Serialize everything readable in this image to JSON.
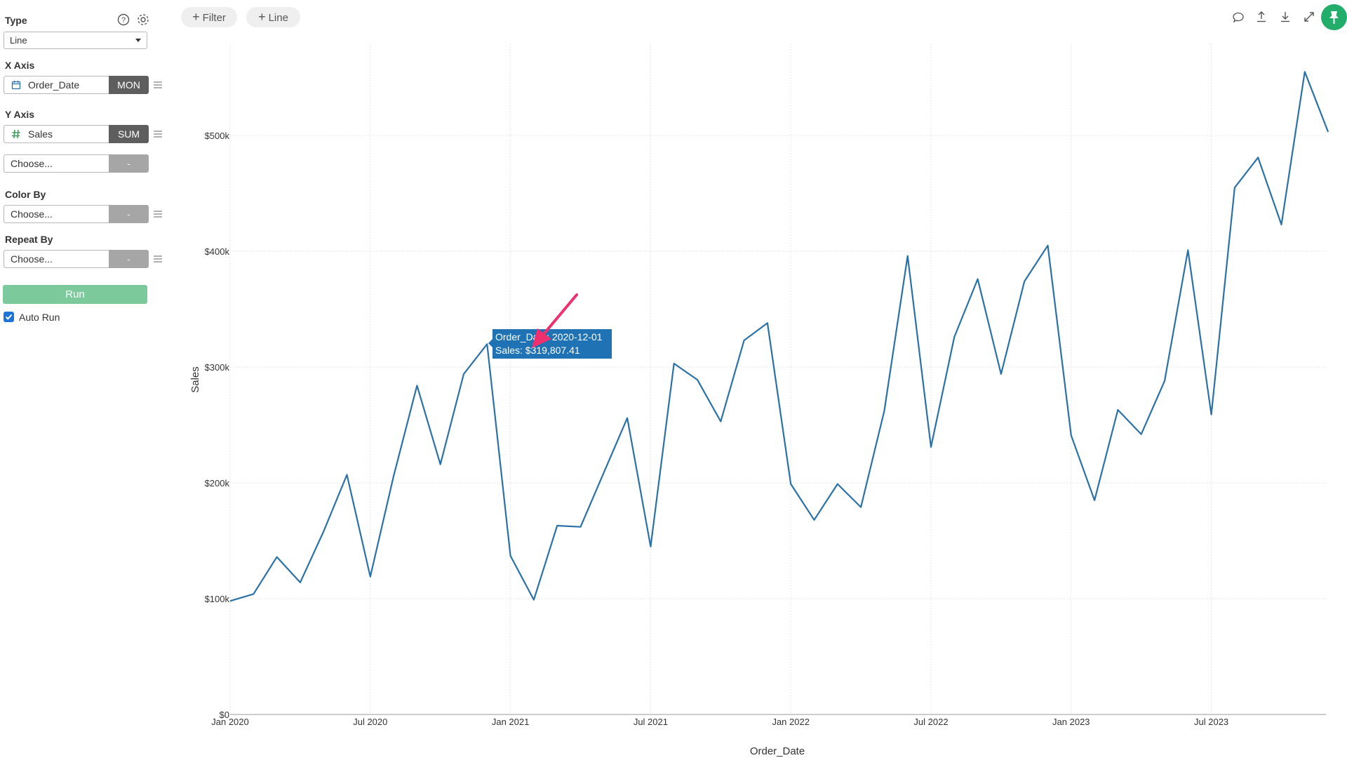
{
  "sidebar": {
    "type_label": "Type",
    "type_value": "Line",
    "x_axis_label": "X Axis",
    "x_field": "Order_Date",
    "x_agg": "MON",
    "y_axis_label": "Y Axis",
    "y_field": "Sales",
    "y_agg": "SUM",
    "y2_placeholder": "Choose...",
    "y2_agg": "-",
    "color_by_label": "Color By",
    "color_by_placeholder": "Choose...",
    "color_by_agg": "-",
    "repeat_by_label": "Repeat By",
    "repeat_by_placeholder": "Choose...",
    "repeat_by_agg": "-",
    "run_label": "Run",
    "auto_run_label": "Auto Run",
    "auto_run_checked": true,
    "icons": [
      "help-icon",
      "settings-gear-icon",
      "calendar-icon",
      "hash-icon",
      "drag-menu-icon"
    ]
  },
  "toolbar": {
    "filter_label": "Filter",
    "line_label": "Line",
    "icons": [
      "comment-icon",
      "upload-icon",
      "download-icon",
      "expand-icon",
      "pin-icon"
    ],
    "pin_color": "#22ad6a"
  },
  "tooltip": {
    "line1": "Order_Date: 2020-12-01",
    "line2": "Sales: $319,807.41"
  },
  "chart_data": {
    "type": "line",
    "xlabel": "Order_Date",
    "ylabel": "Sales",
    "x_ticks": [
      "Jan 2020",
      "Jul 2020",
      "Jan 2021",
      "Jul 2021",
      "Jan 2022",
      "Jul 2022",
      "Jan 2023",
      "Jul 2023"
    ],
    "y_ticks": [
      "$0",
      "$100k",
      "$200k",
      "$300k",
      "$400k",
      "$500k"
    ],
    "ylim": [
      0,
      575000
    ],
    "xlim": [
      "2020-01",
      "2023-12"
    ],
    "grid": true,
    "line_color": "#2a71a8",
    "accent_arrow_color": "#f0306e",
    "series": [
      {
        "x": [
          "2020-01",
          "2020-02",
          "2020-03",
          "2020-04",
          "2020-05",
          "2020-06",
          "2020-07",
          "2020-08",
          "2020-09",
          "2020-10",
          "2020-11",
          "2020-12",
          "2021-01",
          "2021-02",
          "2021-03",
          "2021-04",
          "2021-05",
          "2021-06",
          "2021-07",
          "2021-08",
          "2021-09",
          "2021-10",
          "2021-11",
          "2021-12",
          "2022-01",
          "2022-02",
          "2022-03",
          "2022-04",
          "2022-05",
          "2022-06",
          "2022-07",
          "2022-08",
          "2022-09",
          "2022-10",
          "2022-11",
          "2022-12",
          "2023-01",
          "2023-02",
          "2023-03",
          "2023-04",
          "2023-05",
          "2023-06",
          "2023-07",
          "2023-08",
          "2023-09",
          "2023-10",
          "2023-11",
          "2023-12"
        ],
        "values": [
          98000,
          104000,
          136000,
          114000,
          158000,
          207000,
          119000,
          206000,
          284000,
          216000,
          294000,
          319807,
          137000,
          99000,
          163000,
          162000,
          209000,
          256000,
          145000,
          303000,
          289000,
          253000,
          323000,
          338000,
          199000,
          168000,
          199000,
          179000,
          262000,
          396000,
          231000,
          326000,
          376000,
          294000,
          374000,
          405000,
          241000,
          185000,
          263000,
          242000,
          288000,
          401000,
          259000,
          455000,
          481000,
          423000,
          555000,
          503000
        ]
      }
    ]
  }
}
